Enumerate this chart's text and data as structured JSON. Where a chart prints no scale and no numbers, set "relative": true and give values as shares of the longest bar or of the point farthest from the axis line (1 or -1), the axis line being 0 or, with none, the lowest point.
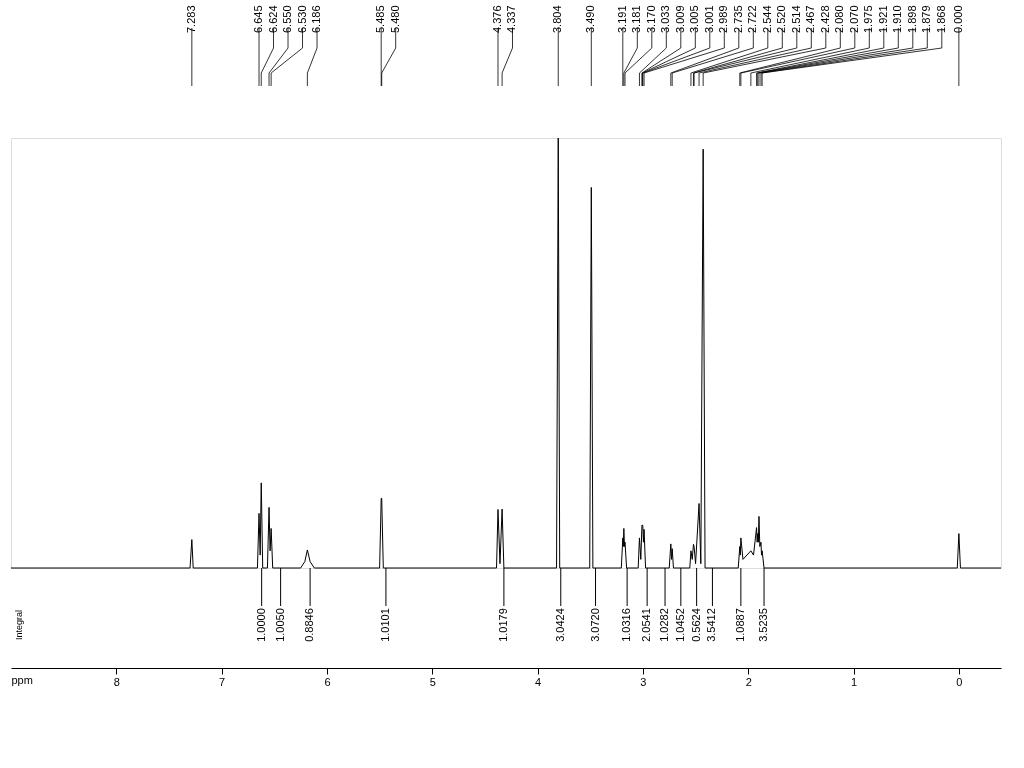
{
  "chart_data": {
    "type": "line",
    "relative": true,
    "xlabel": "ppm",
    "xlim": [
      9.0,
      -0.4
    ],
    "xticks": [
      8,
      7,
      6,
      5,
      4,
      3,
      2,
      1,
      0
    ],
    "grid": false,
    "marker": "none",
    "line_style": "solid",
    "tick_labels": "x",
    "series": [
      {
        "color": "#000000",
        "x": [
          9.0,
          7.3,
          7.283,
          7.27,
          6.66,
          6.645,
          6.634,
          6.624,
          6.61,
          6.565,
          6.55,
          6.54,
          6.53,
          6.515,
          6.25,
          6.21,
          6.186,
          6.16,
          6.12,
          5.5,
          5.485,
          5.48,
          5.465,
          4.39,
          4.376,
          4.357,
          4.337,
          4.32,
          3.82,
          3.804,
          3.79,
          3.505,
          3.49,
          3.475,
          3.205,
          3.191,
          3.186,
          3.181,
          3.175,
          3.17,
          3.155,
          3.045,
          3.033,
          3.02,
          3.009,
          3.005,
          3.001,
          2.995,
          2.989,
          2.975,
          2.75,
          2.735,
          2.728,
          2.722,
          2.71,
          2.555,
          2.544,
          2.532,
          2.52,
          2.514,
          2.5,
          2.467,
          2.45,
          2.428,
          2.41,
          2.095,
          2.08,
          2.075,
          2.07,
          2.05,
          1.975,
          1.95,
          1.921,
          1.915,
          1.91,
          1.904,
          1.898,
          1.89,
          1.879,
          1.874,
          1.868,
          1.85,
          0.015,
          0.0,
          -0.015,
          -0.4
        ],
        "values": [
          0,
          0,
          0.066,
          0,
          0,
          0.127,
          0.03,
          0.198,
          0,
          0,
          0.141,
          0.04,
          0.092,
          0,
          0,
          0.015,
          0.042,
          0.015,
          0,
          0,
          0.162,
          0.162,
          0,
          0,
          0.136,
          0.01,
          0.137,
          0,
          0,
          1.0,
          0,
          0,
          0.885,
          0,
          0,
          0.07,
          0.05,
          0.092,
          0.05,
          0.06,
          0,
          0,
          0.07,
          0.02,
          0.1,
          0.1,
          0.098,
          0.06,
          0.09,
          0,
          0,
          0.056,
          0.02,
          0.045,
          0,
          0,
          0.04,
          0.02,
          0.055,
          0.05,
          0.01,
          0.15,
          0.01,
          0.974,
          0,
          0,
          0.05,
          0.03,
          0.07,
          0.02,
          0.04,
          0.03,
          0.094,
          0.06,
          0.08,
          0.06,
          0.12,
          0.05,
          0.06,
          0.03,
          0.04,
          0,
          0,
          0.08,
          0,
          0
        ]
      }
    ],
    "annotations": [
      {
        "text": "7.283",
        "x": 7.283
      },
      {
        "text": "6.645",
        "x": 6.645
      },
      {
        "text": "6.624",
        "x": 6.624
      },
      {
        "text": "6.550",
        "x": 6.55
      },
      {
        "text": "6.530",
        "x": 6.53
      },
      {
        "text": "6.186",
        "x": 6.186
      },
      {
        "text": "5.485",
        "x": 5.485
      },
      {
        "text": "5.480",
        "x": 5.48
      },
      {
        "text": "4.376",
        "x": 4.376
      },
      {
        "text": "4.337",
        "x": 4.337
      },
      {
        "text": "3.804",
        "x": 3.804
      },
      {
        "text": "3.490",
        "x": 3.49
      },
      {
        "text": "3.191",
        "x": 3.191
      },
      {
        "text": "3.181",
        "x": 3.181
      },
      {
        "text": "3.170",
        "x": 3.17
      },
      {
        "text": "3.033",
        "x": 3.033
      },
      {
        "text": "3.009",
        "x": 3.009
      },
      {
        "text": "3.005",
        "x": 3.005
      },
      {
        "text": "3.001",
        "x": 3.001
      },
      {
        "text": "2.989",
        "x": 2.989
      },
      {
        "text": "2.735",
        "x": 2.735
      },
      {
        "text": "2.722",
        "x": 2.722
      },
      {
        "text": "2.544",
        "x": 2.544
      },
      {
        "text": "2.520",
        "x": 2.52
      },
      {
        "text": "2.514",
        "x": 2.514
      },
      {
        "text": "2.467",
        "x": 2.467
      },
      {
        "text": "2.428",
        "x": 2.428
      },
      {
        "text": "2.080",
        "x": 2.08
      },
      {
        "text": "2.070",
        "x": 2.07
      },
      {
        "text": "1.975",
        "x": 1.975
      },
      {
        "text": "1.921",
        "x": 1.921
      },
      {
        "text": "1.910",
        "x": 1.91
      },
      {
        "text": "1.898",
        "x": 1.898
      },
      {
        "text": "1.879",
        "x": 1.879
      },
      {
        "text": "1.868",
        "x": 1.868
      },
      {
        "text": "0.000",
        "x": 0.0
      },
      "Integral",
      {
        "text": "1.0000",
        "x": 6.62,
        "y": 0
      },
      {
        "text": "1.0050",
        "x": 6.44,
        "y": 0
      },
      {
        "text": "0.8846",
        "x": 6.16,
        "y": 0
      },
      {
        "text": "1.0101",
        "x": 5.44,
        "y": 0
      },
      {
        "text": "1.0179",
        "x": 4.32,
        "y": 0
      },
      {
        "text": "3.0424",
        "x": 3.78,
        "y": 0
      },
      {
        "text": "3.0720",
        "x": 3.45,
        "y": 0
      },
      {
        "text": "1.0316",
        "x": 3.15,
        "y": 0
      },
      {
        "text": "2.0541",
        "x": 2.96,
        "y": 0
      },
      {
        "text": "1.0282",
        "x": 2.79,
        "y": 0
      },
      {
        "text": "1.0452",
        "x": 2.64,
        "y": 0
      },
      {
        "text": "0.5624",
        "x": 2.49,
        "y": 0
      },
      {
        "text": "3.5412",
        "x": 2.34,
        "y": 0
      },
      {
        "text": "1.0887",
        "x": 2.07,
        "y": 0
      },
      {
        "text": "3.5235",
        "x": 1.85,
        "y": 0
      }
    ]
  }
}
